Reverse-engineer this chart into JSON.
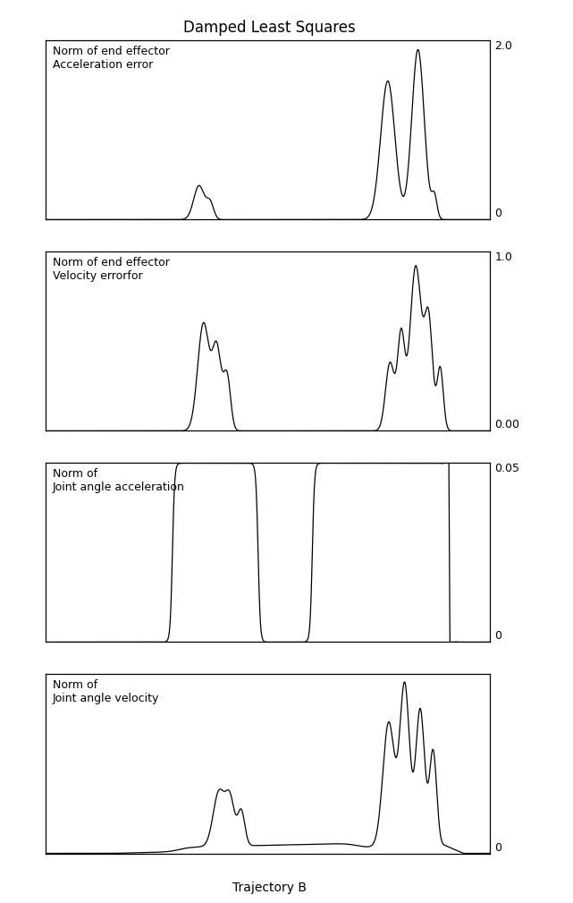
{
  "title": "Damped Least Squares",
  "xlabel": "Trajectory B",
  "panels": [
    {
      "label": "Norm of end effector\nAcceleration error",
      "top_label": "2.0",
      "bottom_label": "0"
    },
    {
      "label": "Norm of end effector\nVelocity errorfor",
      "top_label": "1.0",
      "bottom_label": "0.00"
    },
    {
      "label": "Norm of\nJoint angle acceleration",
      "top_label": "0.05",
      "bottom_label": "0"
    },
    {
      "label": "Norm of\nJoint angle velocity",
      "top_label": "",
      "bottom_label": "0"
    }
  ],
  "n_points": 2000,
  "line_color": "black",
  "background_color": "white",
  "title_fontsize": 12,
  "label_fontsize": 9,
  "tick_fontsize": 9
}
